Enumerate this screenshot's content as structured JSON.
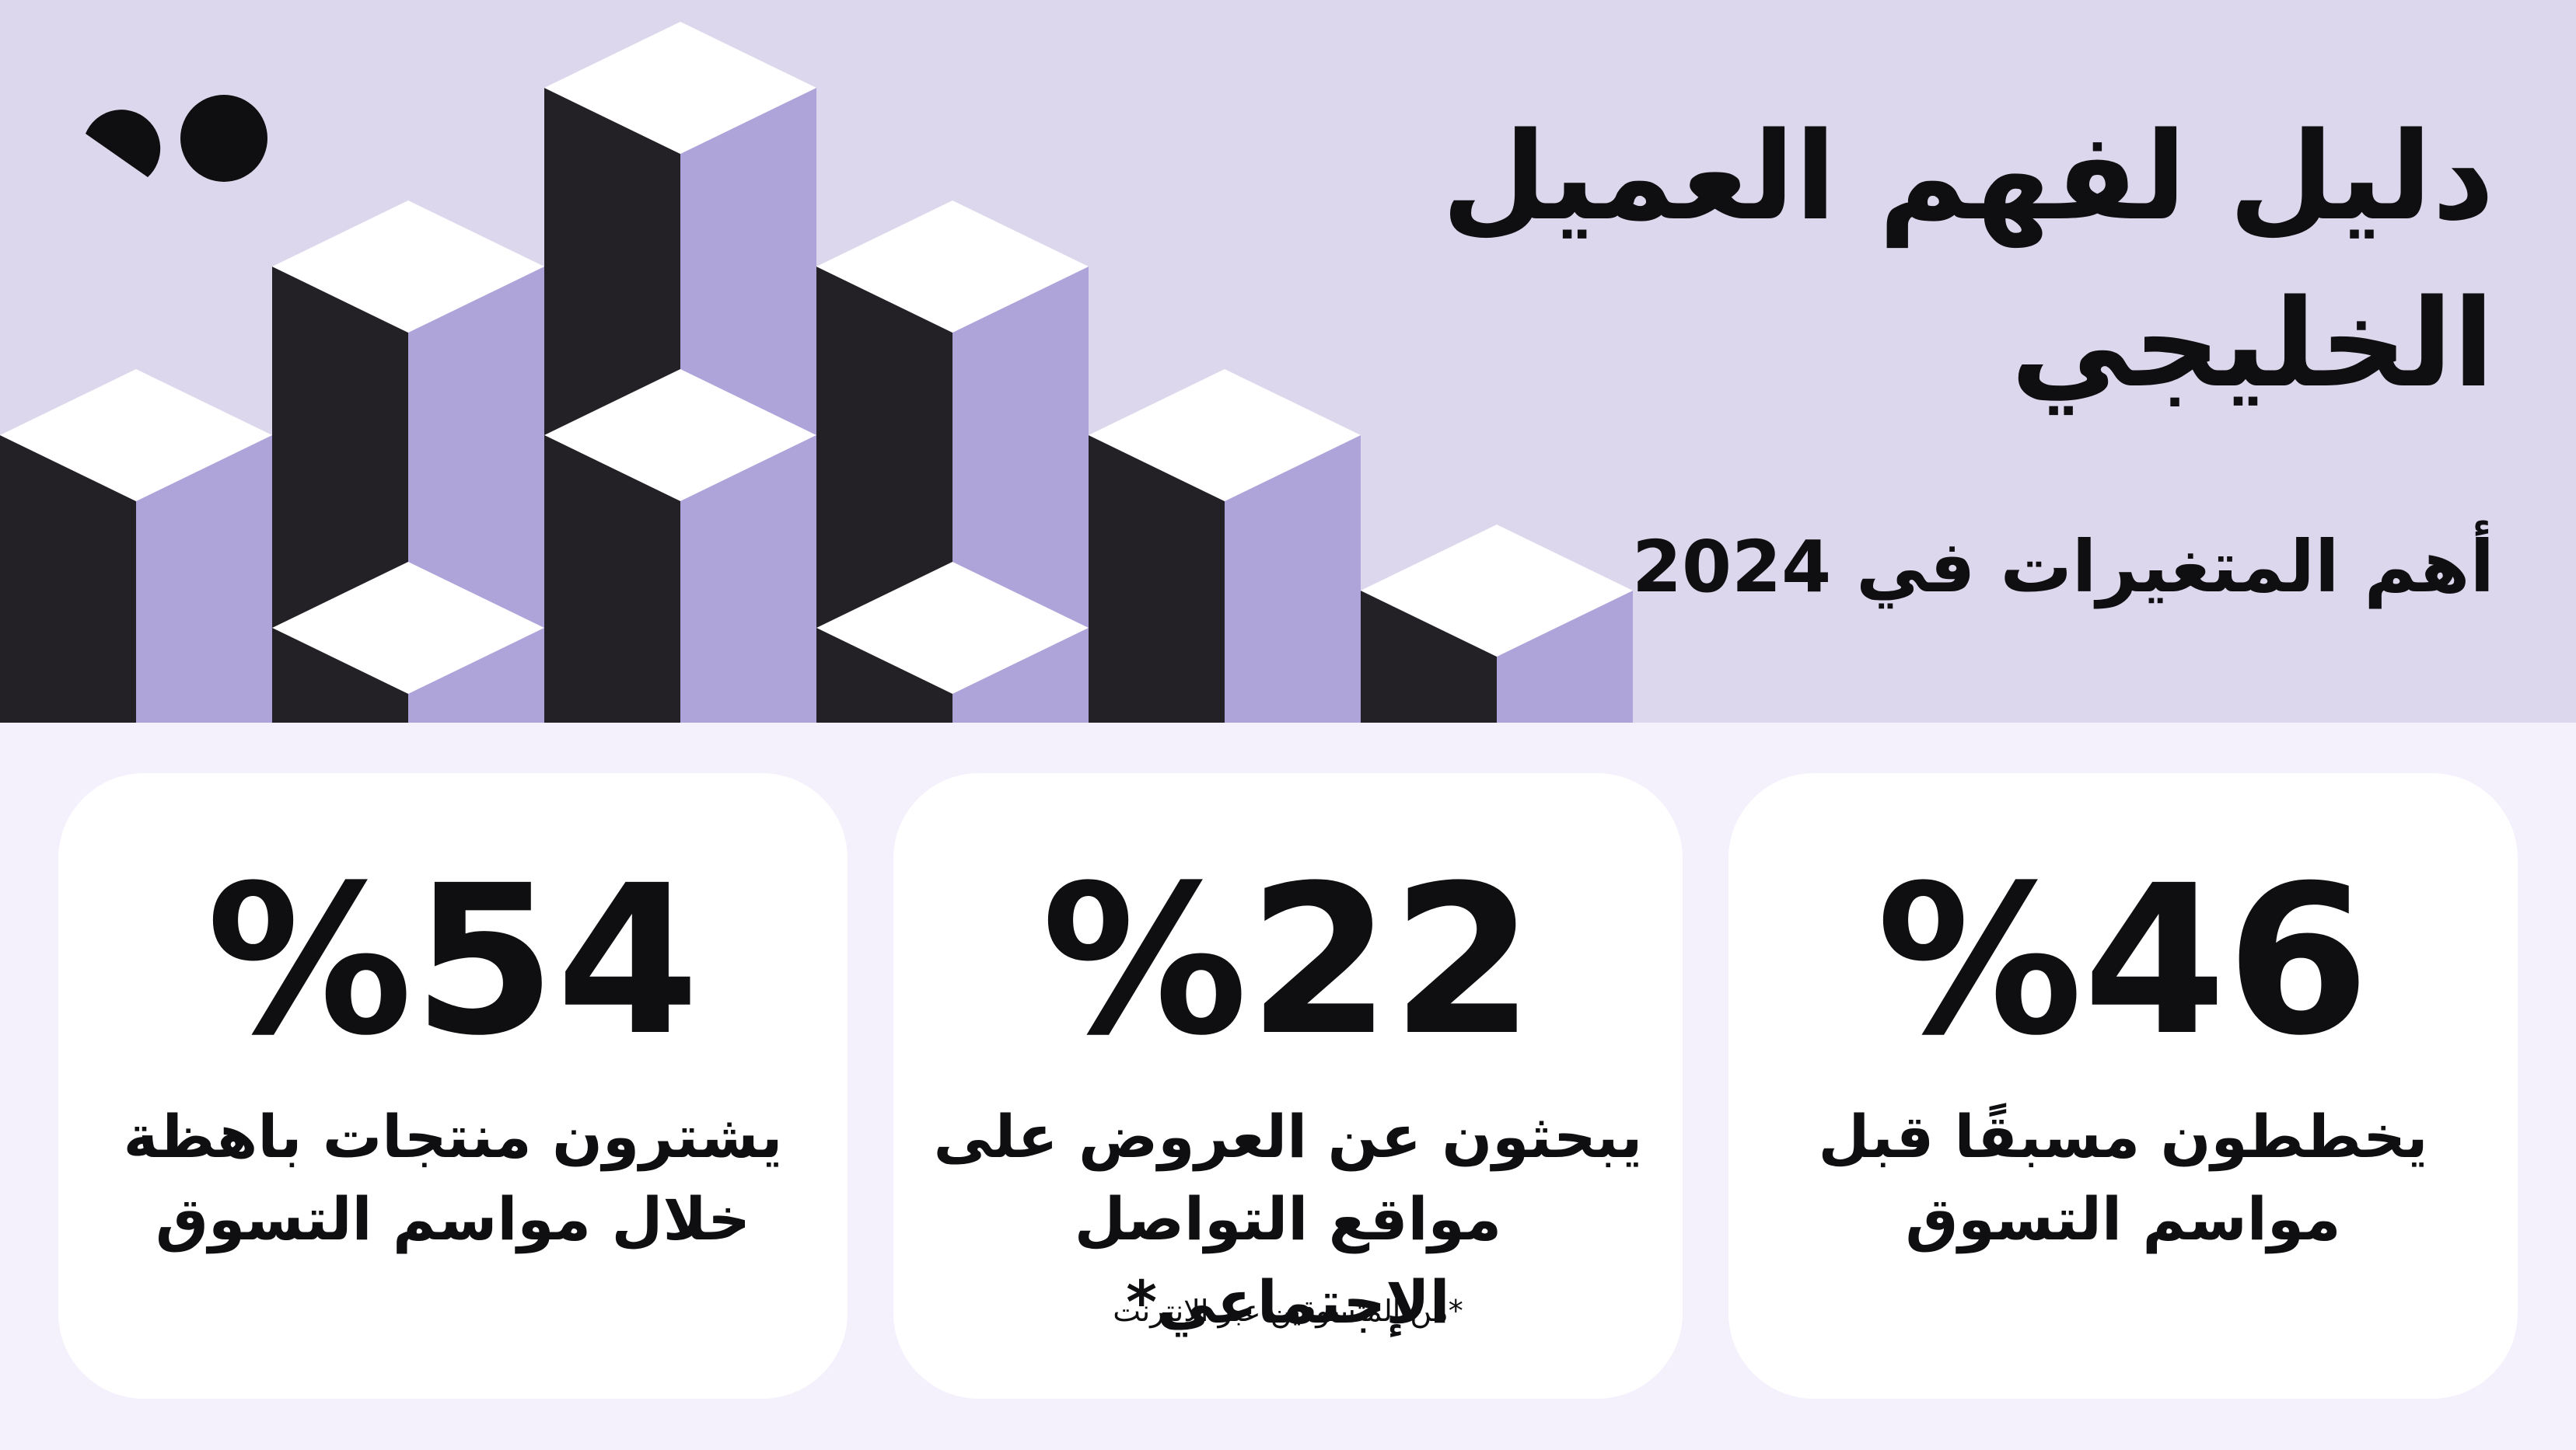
{
  "header": {
    "title_line1": "دليل لفهم العميل",
    "title_line2": "الخليجي",
    "subtitle": "أهم المتغيرات في 2024"
  },
  "colors": {
    "hero_bg": "#DCD7EC",
    "page_bg": "#F4F1FD",
    "cube_dark": "#232026",
    "cube_purple": "#AEA4DA",
    "cube_top": "#FFFFFF"
  },
  "brand": {
    "logo": "quote-dots-logo"
  },
  "stats": [
    {
      "value": "%46",
      "line1": "يخططون مسبقًا قبل",
      "line2": "مواسم التسوق",
      "note": ""
    },
    {
      "value": "%22",
      "line1": "يبحثون عن العروض على",
      "line2": "مواقع التواصل الإجتماعي*",
      "note": "*من المتسوقين عبر الإنترنت"
    },
    {
      "value": "%54",
      "line1": "يشترون منتجات باهظة",
      "line2": "خلال مواسم التسوق",
      "note": ""
    }
  ]
}
